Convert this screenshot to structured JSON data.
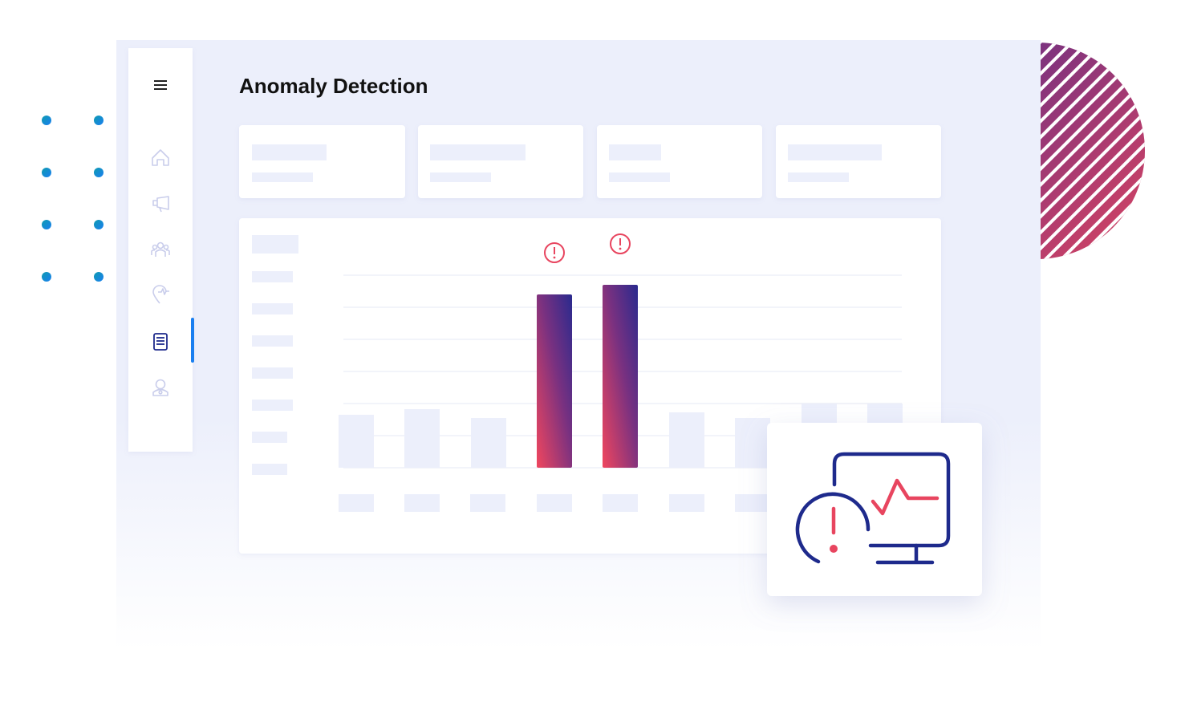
{
  "header": {
    "title": "Anomaly Detection"
  }
}
